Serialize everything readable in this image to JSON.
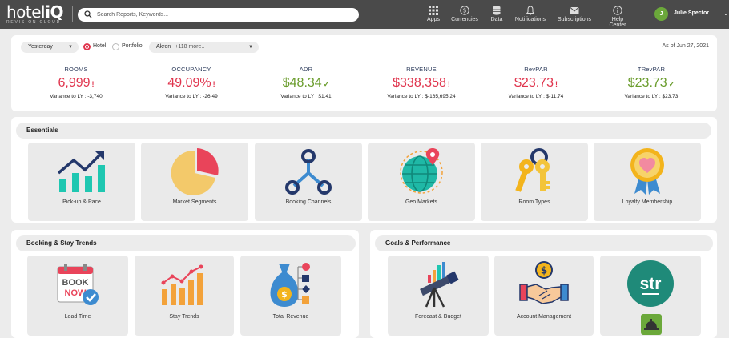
{
  "header": {
    "logo_main": "hotel",
    "logo_accent": "iQ",
    "logo_sub": "REVISION CLOUD",
    "search_placeholder": "Search Reports, Keywords...",
    "nav": [
      {
        "label": "Apps",
        "icon": "apps-icon"
      },
      {
        "label": "Currencies",
        "icon": "currency-icon"
      },
      {
        "label": "Data",
        "icon": "database-icon"
      },
      {
        "label": "Notifications",
        "icon": "bell-icon"
      },
      {
        "label": "Subscriptions",
        "icon": "mail-icon"
      },
      {
        "label": "Help Center",
        "icon": "info-icon"
      }
    ],
    "user": {
      "initial": "J",
      "name": "Julie Spector",
      "caret": "⌄"
    }
  },
  "filters": {
    "period": "Yesterday",
    "radio_hotel": "Hotel",
    "radio_portfolio": "Portfolio",
    "selected_radio": "Hotel",
    "hotel_select": "Akron",
    "hotel_more": "+118 more..",
    "as_of": "As of Jun 27, 2021",
    "dd_caret": "▼"
  },
  "kpis": [
    {
      "label": "ROOMS",
      "value": "6,999",
      "trend": "down",
      "arrow": "!",
      "variance": "Variance to LY : -3,740",
      "color": "red"
    },
    {
      "label": "OCCUPANCY",
      "value": "49.09%",
      "trend": "down",
      "arrow": "!",
      "variance": "Variance to LY : -26.49",
      "color": "red"
    },
    {
      "label": "ADR",
      "value": "$48.34",
      "trend": "up",
      "arrow": "✓",
      "variance": "Variance to LY : $1.41",
      "color": "green"
    },
    {
      "label": "REVENUE",
      "value": "$338,358",
      "trend": "down",
      "arrow": "!",
      "variance": "Variance to LY : $-165,695.24",
      "color": "red"
    },
    {
      "label": "RevPAR",
      "value": "$23.73",
      "trend": "down",
      "arrow": "!",
      "variance": "Variance to LY : $-11.74",
      "color": "red"
    },
    {
      "label": "TRevPAR",
      "value": "$23.73",
      "trend": "up",
      "arrow": "✓",
      "variance": "Variance to LY : $23.73",
      "color": "green"
    }
  ],
  "essentials": {
    "title": "Essentials",
    "tiles": [
      "Pick-up & Pace",
      "Market Segments",
      "Booking Channels",
      "Geo Markets",
      "Room Types",
      "Loyalty Membership"
    ]
  },
  "booking": {
    "title": "Booking & Stay Trends",
    "tiles": [
      "Lead Time",
      "Stay Trends",
      "Total Revenue"
    ],
    "book_now": [
      "BOOK",
      "NOW"
    ]
  },
  "goals": {
    "title": "Goals & Performance",
    "tiles": [
      "Forecast & Budget",
      "Account Management",
      ""
    ],
    "str_logo": "str"
  },
  "colors": {
    "red": "#e0344d",
    "green": "#6a9c2c",
    "teal": "#1fc7b1",
    "navy": "#24386b",
    "header": "#4a4a4a"
  }
}
